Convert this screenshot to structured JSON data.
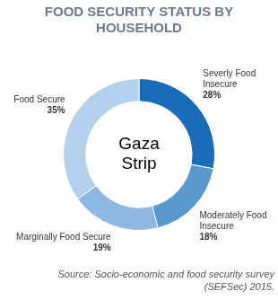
{
  "chart_data": {
    "type": "doughnut",
    "title": "FOOD SECURITY STATUS BY HOUSEHOLD",
    "annotation": "Gaza Strip",
    "source": "Source: Socio-economic and food security survey (SEFSec) 2015.",
    "categories": [
      "Severly Food Insecure",
      "Moderately Food Insecure",
      "Marginally Food Secure",
      "Food Secure"
    ],
    "values": [
      28,
      18,
      19,
      35
    ],
    "value_labels": [
      "28%",
      "18%",
      "19%",
      "35%"
    ],
    "colors": [
      "#1a6bb8",
      "#5a98d0",
      "#8fb8e0",
      "#b3d0ec"
    ],
    "data_labels": true
  }
}
